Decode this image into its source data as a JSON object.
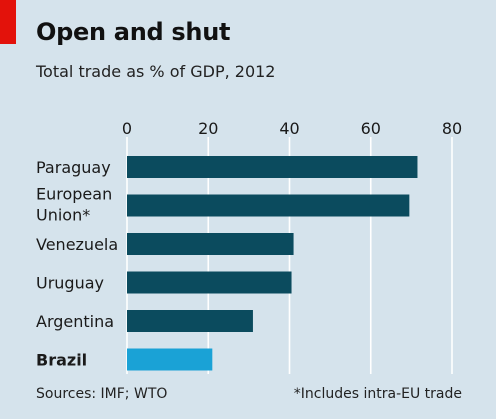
{
  "header": {
    "title": "Open and shut",
    "subtitle": "Total trade as % of GDP, 2012"
  },
  "footer": {
    "sources": "Sources: IMF; WTO",
    "note": "*Includes intra-EU trade"
  },
  "colors": {
    "background": "#d5e3ec",
    "bar": "#0b4b5e",
    "highlight_bar": "#1aa2d6",
    "grid": "#ffffff",
    "accent": "#e3120b"
  },
  "chart_data": {
    "type": "bar",
    "orientation": "horizontal",
    "title": "Open and shut",
    "subtitle": "Total trade as % of GDP, 2012",
    "categories": [
      [
        "Paraguay"
      ],
      [
        "European",
        "Union*"
      ],
      [
        "Venezuela"
      ],
      [
        "Uruguay"
      ],
      [
        "Argentina"
      ],
      [
        "Brazil"
      ]
    ],
    "values": [
      71.5,
      69.5,
      41,
      40.5,
      31,
      21
    ],
    "highlight_index": 5,
    "xlim": [
      0,
      80
    ],
    "xticks": [
      0,
      20,
      40,
      60,
      80
    ],
    "grid": true,
    "xaxis_position": "top"
  }
}
